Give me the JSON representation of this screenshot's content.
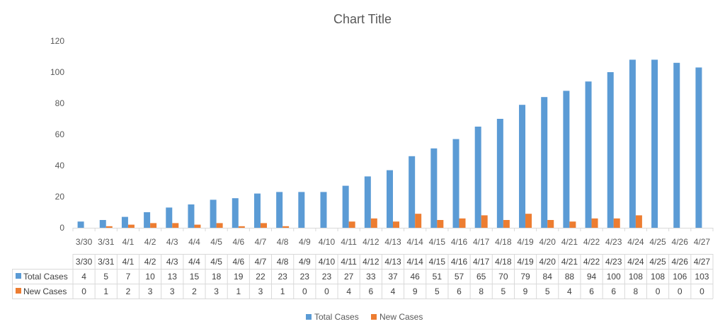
{
  "chart_data": {
    "type": "bar",
    "title": "Chart Title",
    "xlabel": "",
    "ylabel": "",
    "ylim": [
      0,
      120
    ],
    "yticks": [
      0,
      20,
      40,
      60,
      80,
      100,
      120
    ],
    "grid": false,
    "legend": "bottom",
    "data_table": true,
    "categories": [
      "3/30",
      "3/31",
      "4/1",
      "4/2",
      "4/3",
      "4/4",
      "4/5",
      "4/6",
      "4/7",
      "4/8",
      "4/9",
      "4/10",
      "4/11",
      "4/12",
      "4/13",
      "4/14",
      "4/15",
      "4/16",
      "4/17",
      "4/18",
      "4/19",
      "4/20",
      "4/21",
      "4/22",
      "4/23",
      "4/24",
      "4/25",
      "4/26",
      "4/27"
    ],
    "series": [
      {
        "name": "Total Cases",
        "color": "#5B9BD5",
        "values": [
          4,
          5,
          7,
          10,
          13,
          15,
          18,
          19,
          22,
          23,
          23,
          23,
          27,
          33,
          37,
          46,
          51,
          57,
          65,
          70,
          79,
          84,
          88,
          94,
          100,
          108,
          108,
          106,
          103
        ]
      },
      {
        "name": "New Cases",
        "color": "#ED7D31",
        "values": [
          0,
          1,
          2,
          3,
          3,
          2,
          3,
          1,
          3,
          1,
          0,
          0,
          4,
          6,
          4,
          9,
          5,
          6,
          8,
          5,
          9,
          5,
          4,
          6,
          6,
          8,
          0,
          0,
          0
        ]
      }
    ]
  }
}
